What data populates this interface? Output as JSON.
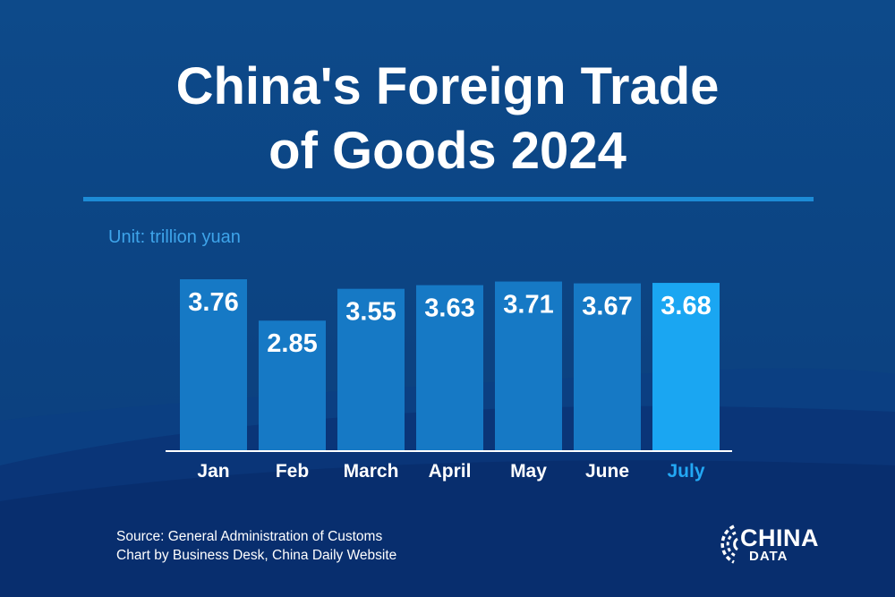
{
  "header": {
    "title_line1": "China's Foreign Trade",
    "title_line2": "of Goods 2024",
    "unit": "Unit: trillion yuan"
  },
  "footer": {
    "source": "Source: General Administration of Customs",
    "credit": "Chart by Business Desk, China Daily Website"
  },
  "logo": {
    "text1": "CHINA",
    "text2": "DATA"
  },
  "colors": {
    "bar": "#1679c5",
    "bar_highlight": "#1aa6f2",
    "label_highlight": "#23a8f4",
    "background": "#0c4482"
  },
  "chart_data": {
    "type": "bar",
    "title": "China's Foreign Trade of Goods 2024",
    "ylabel": "Unit: trillion yuan",
    "categories": [
      "Jan",
      "Feb",
      "March",
      "April",
      "May",
      "June",
      "July"
    ],
    "values": [
      3.76,
      2.85,
      3.55,
      3.63,
      3.71,
      3.67,
      3.68
    ],
    "highlight_index": 6,
    "grid": false
  }
}
